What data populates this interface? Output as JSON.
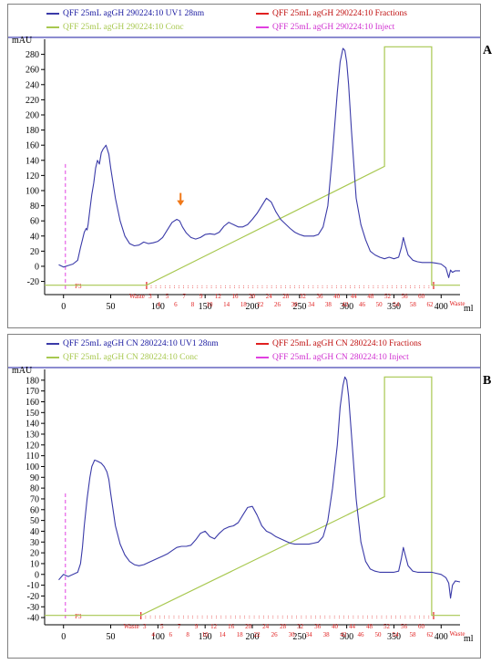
{
  "panels": [
    {
      "letter": "A",
      "legend": {
        "uv": "QFF 25mL agGH 290224:10 UV1 28nm",
        "fractions": "QFF 25mL agGH 290224:10 Fractions",
        "conc": "QFF 25mL agGH 290224:10 Conc",
        "inject": "QFF 25mL agGH 290224:10 Inject"
      }
    },
    {
      "letter": "B",
      "legend": {
        "uv": "QFF 25mL agGH CN 280224:10 UV1 28nm",
        "fractions": "QFF 25mL agGH CN 280224:10 Fractions",
        "conc": "QFF 25mL agGH CN 280224:10 Conc",
        "inject": "QFF 25mL agGH CN 280224:10 Inject"
      }
    }
  ],
  "colors": {
    "uv": "#3a3aa8",
    "fractions": "#e02020",
    "conc": "#a8c850",
    "inject": "#e040e0",
    "arrow": "#f07818",
    "axis": "#000000",
    "frame": "#1a1aa0"
  },
  "chart_data": [
    {
      "type": "line",
      "ylabel": "mAU",
      "xlabel": "ml",
      "xlim": [
        -20,
        420
      ],
      "ylim": [
        -35,
        300
      ],
      "yticks": [
        -20,
        0,
        20,
        40,
        60,
        80,
        100,
        120,
        140,
        160,
        180,
        200,
        220,
        240,
        260,
        280
      ],
      "xticks": [
        0,
        50,
        100,
        150,
        200,
        250,
        300,
        350,
        400
      ],
      "fraction_labels": [
        "Waste",
        "3",
        "4",
        "5",
        "6",
        "7",
        "8",
        "9",
        "10",
        "12",
        "14",
        "16",
        "18",
        "20",
        "22",
        "24",
        "26",
        "28",
        "30",
        "32",
        "34",
        "36",
        "38",
        "40",
        "42",
        "44",
        "46",
        "48",
        "50",
        "52",
        "54",
        "56",
        "58",
        "60",
        "62",
        "Waste"
      ],
      "fraction_region": [
        88,
        392
      ],
      "fraction_tag": "F3",
      "inject_x": 2,
      "inject_top": 135,
      "arrow_x": 124,
      "arrow_y": 80,
      "series": [
        {
          "name": "QFF 25mL agGH 290224:10 UV1 28nm",
          "x": [
            -5,
            0,
            5,
            10,
            15,
            18,
            20,
            22,
            24,
            25,
            26,
            28,
            30,
            32,
            34,
            36,
            38,
            40,
            42,
            45,
            48,
            50,
            55,
            60,
            65,
            70,
            75,
            80,
            85,
            90,
            95,
            100,
            105,
            110,
            115,
            120,
            123,
            126,
            130,
            135,
            140,
            145,
            150,
            155,
            160,
            165,
            170,
            175,
            180,
            185,
            190,
            195,
            200,
            205,
            210,
            215,
            220,
            225,
            230,
            235,
            240,
            245,
            250,
            255,
            260,
            265,
            270,
            275,
            280,
            285,
            290,
            293,
            296,
            298,
            300,
            302,
            305,
            310,
            315,
            320,
            325,
            330,
            335,
            340,
            345,
            350,
            355,
            358,
            360,
            362,
            365,
            370,
            375,
            380,
            385,
            390,
            395,
            400,
            405,
            408,
            410,
            412,
            415,
            420
          ],
          "y": [
            2,
            -1,
            1,
            3,
            8,
            25,
            35,
            45,
            50,
            48,
            55,
            75,
            95,
            110,
            130,
            140,
            135,
            150,
            155,
            160,
            148,
            130,
            90,
            60,
            40,
            30,
            27,
            28,
            32,
            30,
            31,
            33,
            38,
            48,
            58,
            62,
            60,
            52,
            44,
            38,
            36,
            38,
            42,
            43,
            42,
            45,
            53,
            58,
            55,
            52,
            52,
            55,
            62,
            70,
            80,
            90,
            85,
            72,
            62,
            56,
            50,
            45,
            42,
            40,
            40,
            40,
            42,
            52,
            80,
            150,
            230,
            270,
            288,
            285,
            270,
            240,
            180,
            90,
            55,
            35,
            20,
            15,
            12,
            10,
            12,
            10,
            12,
            25,
            38,
            28,
            15,
            8,
            6,
            5,
            5,
            5,
            4,
            3,
            -2,
            -15,
            -5,
            -8,
            -6,
            -6
          ]
        },
        {
          "name": "QFF 25mL agGH 290224:10 Conc",
          "x": [
            -20,
            88,
            340,
            340,
            390,
            390,
            420
          ],
          "y": [
            -25,
            -25,
            132,
            290,
            290,
            -25,
            -25
          ]
        }
      ]
    },
    {
      "type": "line",
      "ylabel": "mAU",
      "xlabel": "ml",
      "xlim": [
        -20,
        420
      ],
      "ylim": [
        -45,
        190
      ],
      "yticks": [
        -40,
        -30,
        -20,
        -10,
        0,
        10,
        20,
        30,
        40,
        50,
        60,
        70,
        80,
        90,
        100,
        110,
        120,
        130,
        140,
        150,
        160,
        170,
        180
      ],
      "xticks": [
        0,
        50,
        100,
        150,
        200,
        250,
        300,
        350,
        400
      ],
      "fraction_labels": [
        "Waste",
        "3",
        "4",
        "5",
        "6",
        "7",
        "8",
        "9",
        "10",
        "12",
        "14",
        "16",
        "18",
        "20",
        "22",
        "24",
        "26",
        "28",
        "30",
        "32",
        "34",
        "36",
        "38",
        "40",
        "42",
        "44",
        "46",
        "48",
        "50",
        "52",
        "54",
        "56",
        "58",
        "60",
        "62",
        "Waste"
      ],
      "fraction_region": [
        82,
        392
      ],
      "fraction_tag": "F3",
      "inject_x": 2,
      "inject_top": 75,
      "series": [
        {
          "name": "QFF 25mL agGH CN 280224:10 UV1 28nm",
          "x": [
            -5,
            0,
            5,
            10,
            15,
            18,
            20,
            22,
            25,
            28,
            30,
            33,
            36,
            40,
            43,
            46,
            48,
            50,
            55,
            60,
            65,
            70,
            75,
            80,
            85,
            90,
            95,
            100,
            105,
            110,
            115,
            120,
            125,
            130,
            135,
            140,
            145,
            150,
            155,
            160,
            165,
            170,
            175,
            180,
            185,
            190,
            195,
            200,
            205,
            210,
            215,
            220,
            225,
            230,
            235,
            240,
            245,
            250,
            255,
            260,
            265,
            270,
            275,
            280,
            285,
            290,
            293,
            296,
            298,
            300,
            302,
            305,
            310,
            315,
            320,
            325,
            330,
            335,
            340,
            345,
            350,
            355,
            358,
            360,
            362,
            365,
            370,
            375,
            380,
            385,
            390,
            395,
            400,
            405,
            408,
            410,
            412,
            415,
            420
          ],
          "y": [
            -5,
            0,
            -2,
            0,
            2,
            10,
            25,
            45,
            70,
            90,
            100,
            106,
            105,
            103,
            100,
            95,
            88,
            75,
            45,
            28,
            18,
            12,
            9,
            8,
            9,
            11,
            13,
            15,
            17,
            19,
            22,
            25,
            26,
            26,
            27,
            32,
            38,
            40,
            35,
            33,
            38,
            42,
            44,
            45,
            48,
            55,
            62,
            63,
            55,
            45,
            40,
            38,
            35,
            33,
            31,
            29,
            28,
            28,
            28,
            28,
            29,
            30,
            35,
            50,
            80,
            120,
            155,
            175,
            183,
            180,
            165,
            130,
            70,
            30,
            12,
            5,
            3,
            2,
            2,
            2,
            2,
            3,
            15,
            25,
            18,
            8,
            3,
            2,
            2,
            2,
            2,
            1,
            0,
            -3,
            -8,
            -22,
            -10,
            -6,
            -7
          ]
        },
        {
          "name": "QFF 25mL agGH CN 280224:10 Conc",
          "x": [
            -20,
            82,
            340,
            340,
            390,
            390,
            420
          ],
          "y": [
            -38,
            -38,
            72,
            183,
            183,
            -38,
            -38
          ]
        }
      ]
    }
  ]
}
